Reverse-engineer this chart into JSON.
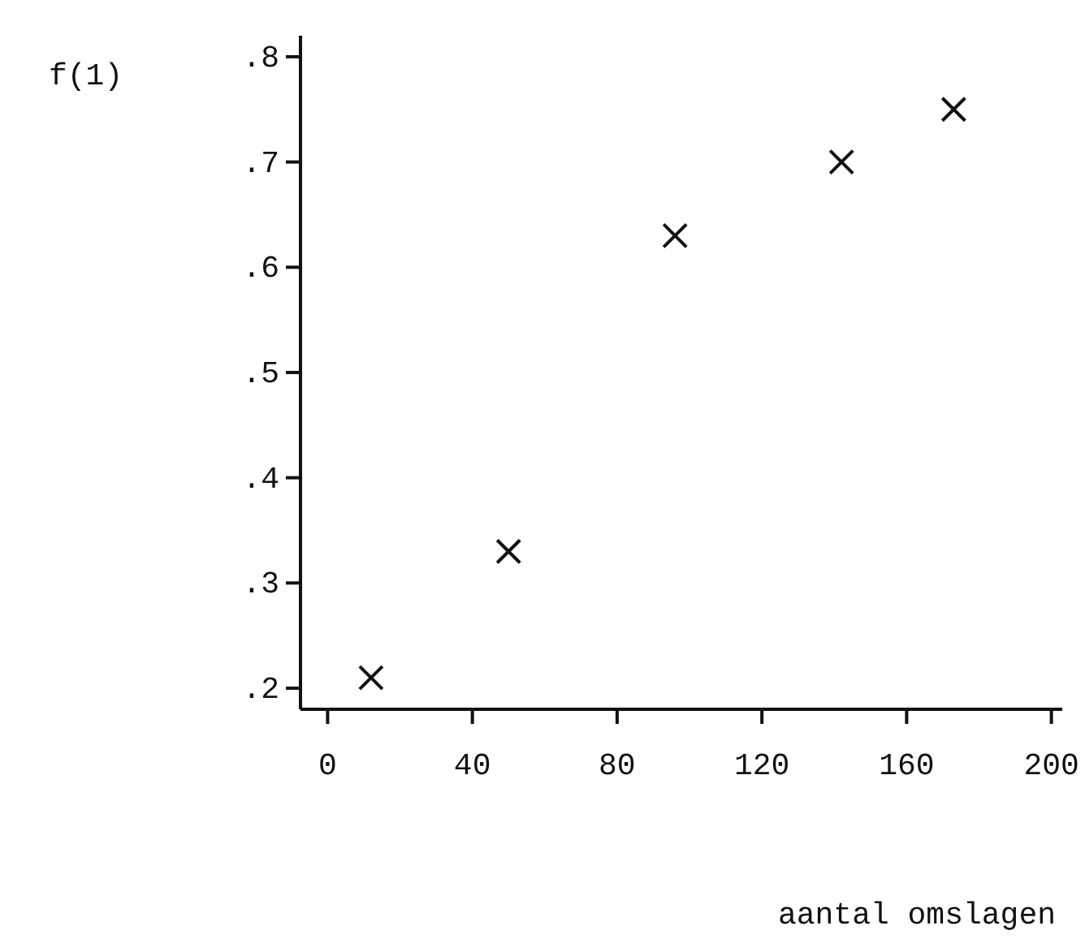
{
  "chart_data": {
    "type": "scatter",
    "xlabel": "aantal omslagen",
    "ylabel": "f(1)",
    "x": [
      12,
      50,
      96,
      142,
      173
    ],
    "values": [
      0.21,
      0.33,
      0.63,
      0.7,
      0.75
    ],
    "color": "#111111",
    "marker": "cross",
    "grid": false,
    "xlim": [
      -7.5,
      203
    ],
    "xticks": [
      0,
      40,
      80,
      120,
      160,
      200
    ],
    "ylim": [
      0.18,
      0.82
    ],
    "yticks": [
      {
        "value": 0.2,
        "label": ".2"
      },
      {
        "value": 0.3,
        "label": ".3"
      },
      {
        "value": 0.4,
        "label": ".4"
      },
      {
        "value": 0.5,
        "label": ".5"
      },
      {
        "value": 0.6,
        "label": ".6"
      },
      {
        "value": 0.7,
        "label": ".7"
      },
      {
        "value": 0.8,
        "label": ".8"
      }
    ]
  }
}
